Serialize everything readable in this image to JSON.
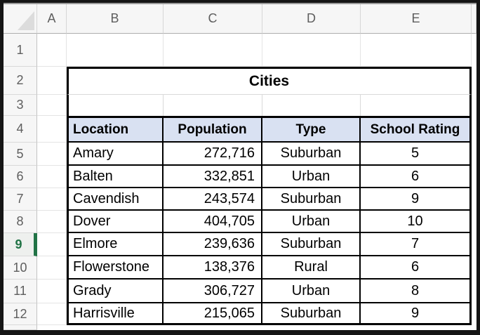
{
  "grid": {
    "column_headers": [
      "A",
      "B",
      "C",
      "D",
      "E"
    ],
    "row_headers": [
      "1",
      "2",
      "3",
      "4",
      "5",
      "6",
      "7",
      "8",
      "9",
      "10",
      "11",
      "12"
    ],
    "selected_row_header": "9"
  },
  "table": {
    "title": "Cities",
    "headers": [
      "Location",
      "Population",
      "Type",
      "School Rating"
    ],
    "rows": [
      [
        "Amary",
        "272,716",
        "Suburban",
        "5"
      ],
      [
        "Balten",
        "332,851",
        "Urban",
        "6"
      ],
      [
        "Cavendish",
        "243,574",
        "Suburban",
        "9"
      ],
      [
        "Dover",
        "404,705",
        "Urban",
        "10"
      ],
      [
        "Elmore",
        "239,636",
        "Suburban",
        "7"
      ],
      [
        "Flowerstone",
        "138,376",
        "Rural",
        "6"
      ],
      [
        "Grady",
        "306,727",
        "Urban",
        "8"
      ],
      [
        "Harrisville",
        "215,065",
        "Suburban",
        "9"
      ]
    ]
  },
  "icons": {
    "select_all": "select-all-triangle"
  },
  "colors": {
    "table_header_fill": "#D9E1F2",
    "selection_green": "#217346",
    "table_border": "#000000",
    "gridline": "#E4E4E4"
  }
}
